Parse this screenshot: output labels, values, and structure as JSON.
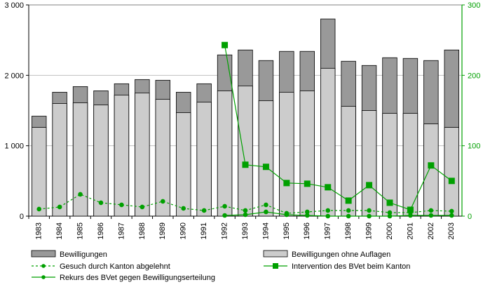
{
  "chart_data": {
    "type": "bar",
    "title": "",
    "xlabel": "",
    "ylabel": "",
    "categories": [
      "1983",
      "1984",
      "1985",
      "1986",
      "1987",
      "1988",
      "1989",
      "1990",
      "1991",
      "1992",
      "1993",
      "1994",
      "1995",
      "1996",
      "1997",
      "1998",
      "1999",
      "2000",
      "2001",
      "2002",
      "2003"
    ],
    "ylim_left": [
      0,
      3000
    ],
    "ylim_right": [
      0,
      300
    ],
    "yticks_left": [
      "0",
      "1 000",
      "2 000",
      "3 000"
    ],
    "yticks_right": [
      "0",
      "100",
      "200",
      "300"
    ],
    "grid": true,
    "legend_position": "bottom",
    "series": [
      {
        "name": "Bewilligungen",
        "kind": "bar",
        "axis": "left",
        "color": "#999999",
        "values": [
          1420,
          1760,
          1840,
          1780,
          1880,
          1940,
          1930,
          1760,
          1880,
          2290,
          2360,
          2210,
          2340,
          2340,
          2800,
          2200,
          2140,
          2250,
          2240,
          2210,
          2360
        ]
      },
      {
        "name": "Bewilligungen ohne Auflagen",
        "kind": "bar",
        "axis": "left",
        "color": "#cccccc",
        "values": [
          1260,
          1600,
          1610,
          1580,
          1720,
          1750,
          1660,
          1470,
          1620,
          1780,
          1850,
          1640,
          1760,
          1780,
          2100,
          1560,
          1500,
          1460,
          1460,
          1310,
          1260
        ]
      },
      {
        "name": "Gesuch durch Kanton abgelehnt",
        "kind": "line",
        "style": "dashed",
        "axis": "right",
        "color": "#00a000",
        "values": [
          10,
          13,
          31,
          19,
          16,
          13,
          21,
          11,
          8,
          14,
          8,
          16,
          4,
          6,
          8,
          8,
          8,
          5,
          5,
          8,
          7
        ]
      },
      {
        "name": "Intervention des BVet beim Kanton",
        "kind": "line",
        "style": "solid",
        "axis": "right",
        "color": "#00a000",
        "x": [
          "1992",
          "1993",
          "1994",
          "1995",
          "1996",
          "1997",
          "1998",
          "1999",
          "2000",
          "2001",
          "2002",
          "2003"
        ],
        "values": [
          243,
          73,
          70,
          47,
          46,
          41,
          22,
          44,
          19,
          9,
          72,
          50
        ]
      },
      {
        "name": "Rekurs des BVet gegen Bewilligungserteilung",
        "kind": "line",
        "style": "solid",
        "axis": "right",
        "color": "#00a000",
        "x": [
          "1992",
          "1993",
          "1994",
          "1995",
          "1996",
          "1997",
          "1998",
          "1999",
          "2000",
          "2001",
          "2002",
          "2003"
        ],
        "values": [
          1,
          2,
          6,
          2,
          1,
          0,
          0,
          0,
          0,
          1,
          1,
          1
        ]
      }
    ]
  }
}
